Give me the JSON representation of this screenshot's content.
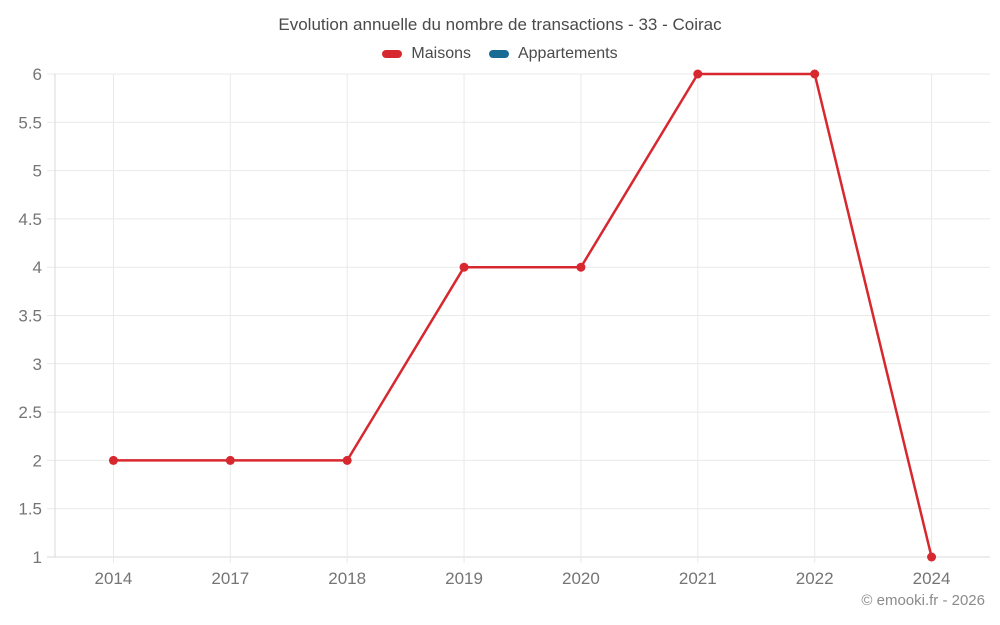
{
  "title": "Evolution annuelle du nombre de transactions - 33 - Coirac",
  "legend": {
    "items": [
      {
        "label": "Maisons",
        "color": "#d7282f"
      },
      {
        "label": "Appartements",
        "color": "#1a6b94"
      }
    ]
  },
  "watermark": "© emooki.fr - 2026",
  "chart_data": {
    "type": "line",
    "title": "Evolution annuelle du nombre de transactions - 33 - Coirac",
    "categories": [
      "2014",
      "2017",
      "2018",
      "2019",
      "2020",
      "2021",
      "2022",
      "2024"
    ],
    "series": [
      {
        "name": "Maisons",
        "color": "#d7282f",
        "values": [
          2,
          2,
          2,
          4,
          4,
          6,
          6,
          1
        ]
      },
      {
        "name": "Appartements",
        "color": "#1a6b94",
        "values": []
      }
    ],
    "xlabel": "",
    "ylabel": "",
    "ylim": [
      1,
      6
    ],
    "yticks": [
      1,
      1.5,
      2,
      2.5,
      3,
      3.5,
      4,
      4.5,
      5,
      5.5,
      6
    ],
    "grid": true,
    "legend_position": "top",
    "point_radius": 4.5,
    "line_width": 2.5,
    "colors": {
      "grid": "#e9e9e9",
      "axis_border": "#d9d9d9",
      "tick_text": "#757575"
    }
  }
}
